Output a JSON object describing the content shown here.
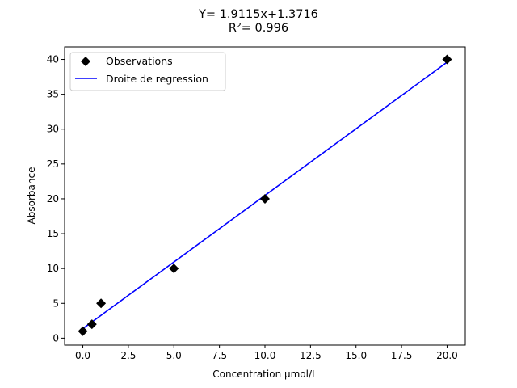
{
  "chart_data": {
    "type": "scatter",
    "title_line1": "Y= 1.9115x+1.3716",
    "title_line2": "R²= 0.996",
    "xlabel": "Concentration µmol/L",
    "ylabel": "Absorbance",
    "xlim": [
      -1.0,
      21.0
    ],
    "ylim": [
      -1.0,
      41.8
    ],
    "xticks": [
      0.0,
      2.5,
      5.0,
      7.5,
      10.0,
      12.5,
      15.0,
      17.5,
      20.0
    ],
    "xtick_labels": [
      "0.0",
      "2.5",
      "5.0",
      "7.5",
      "10.0",
      "12.5",
      "15.0",
      "17.5",
      "20.0"
    ],
    "yticks": [
      0,
      5,
      10,
      15,
      20,
      25,
      30,
      35,
      40
    ],
    "ytick_labels": [
      "0",
      "5",
      "10",
      "15",
      "20",
      "25",
      "30",
      "35",
      "40"
    ],
    "grid": false,
    "legend_position": "top-left",
    "series": [
      {
        "name": "Observations",
        "kind": "scatter",
        "marker": "diamond",
        "color": "#000000",
        "x": [
          0,
          0.5,
          1,
          5,
          10,
          20
        ],
        "y": [
          1,
          2,
          5,
          10,
          20,
          40
        ]
      },
      {
        "name": "Droite de regression",
        "kind": "line",
        "color": "#0000ff",
        "slope": 1.9115,
        "intercept": 1.3716,
        "x": [
          0,
          20
        ],
        "y": [
          1.3716,
          39.6016
        ]
      }
    ]
  }
}
